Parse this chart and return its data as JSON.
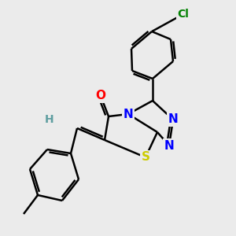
{
  "background_color": "#ebebeb",
  "atom_colors": {
    "C": "#000000",
    "H": "#5f9ea0",
    "N": "#0000ff",
    "O": "#ff0000",
    "S": "#cccc00",
    "Cl": "#008000"
  },
  "bond_color": "#000000",
  "bond_width": 1.8,
  "font_size_atoms": 11,
  "font_size_Cl": 10,
  "font_size_H": 10
}
